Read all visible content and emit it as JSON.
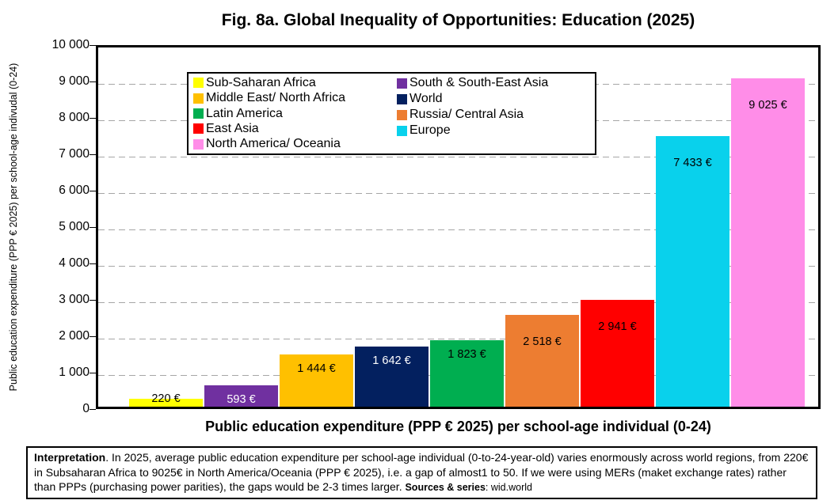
{
  "title": "Fig. 8a. Global Inequality of Opportunities: Education (2025)",
  "chart_data": {
    "type": "bar",
    "title": "Fig. 8a. Global Inequality of Opportunities: Education (2025)",
    "categories": [
      "Sub-Saharan Africa",
      "South & South-East Asia",
      "Middle East/ North Africa",
      "World",
      "Latin America",
      "Russia/ Central Asia",
      "East Asia",
      "Europe",
      "North America/ Oceania"
    ],
    "values": [
      220,
      593,
      1444,
      1642,
      1823,
      2518,
      2941,
      7433,
      9025
    ],
    "value_labels": [
      "220 €",
      "593 €",
      "1 444 €",
      "1 642 €",
      "1 823 €",
      "2 518 €",
      "2 941 €",
      "7 433 €",
      "9 025 €"
    ],
    "bar_colors": [
      "#FFFF00",
      "#7030A0",
      "#FFC000",
      "#03205F",
      "#00AE50",
      "#ED7D31",
      "#FF0000",
      "#09D1EC",
      "#FF8DE8"
    ],
    "value_label_colors": [
      "#000000",
      "#FFFFFF",
      "#000000",
      "#FFFFFF",
      "#000000",
      "#000000",
      "#000000",
      "#000000",
      "#000000"
    ],
    "xlabel": "Public education expenditure (PPP € 2025) per school-age individual (0-24)",
    "ylabel": "Public education expenditure (PPP € 2025) per school-age indivudal (0-24)",
    "ylim": [
      0,
      10000
    ],
    "ytick_step": 1000,
    "ytick_labels": [
      "0",
      "1 000",
      "2 000",
      "3 000",
      "4 000",
      "5 000",
      "6 000",
      "7 000",
      "8 000",
      "9 000",
      "10 000"
    ],
    "grid": "dashed horizontal gridlines at each 1000",
    "legend_position": "inside plot, upper left-center, two columns"
  },
  "legend": {
    "column1": [
      {
        "label": "Sub-Saharan Africa",
        "color": "#FFFF00"
      },
      {
        "label": "Middle East/ North Africa",
        "color": "#FFC000"
      },
      {
        "label": "Latin America",
        "color": "#00AE50"
      },
      {
        "label": "East Asia",
        "color": "#FF0000"
      },
      {
        "label": "North America/ Oceania",
        "color": "#FF8DE8"
      }
    ],
    "column2": [
      {
        "label": "South & South-East Asia",
        "color": "#7030A0"
      },
      {
        "label": "World",
        "color": "#03205F"
      },
      {
        "label": "Russia/ Central Asia",
        "color": "#ED7D31"
      },
      {
        "label": "Europe",
        "color": "#09D1EC"
      }
    ]
  },
  "note": {
    "lead": "Interpretation",
    "body": ". In 2025, average public education expenditure per school-age individual (0-to-24-year-old) varies enormously across world regions, from 220€ in Subsaharan Africa to 9025€ in North America/Oceania (PPP € 2025), i.e. a gap of almost1 to 50. If we were using MERs (maket exchange rates) rather than PPPs (purchasing power parities), the gaps would be 2-3 times larger.  ",
    "sources_label": "Sources & series",
    "sources_value": ": wid.world"
  }
}
